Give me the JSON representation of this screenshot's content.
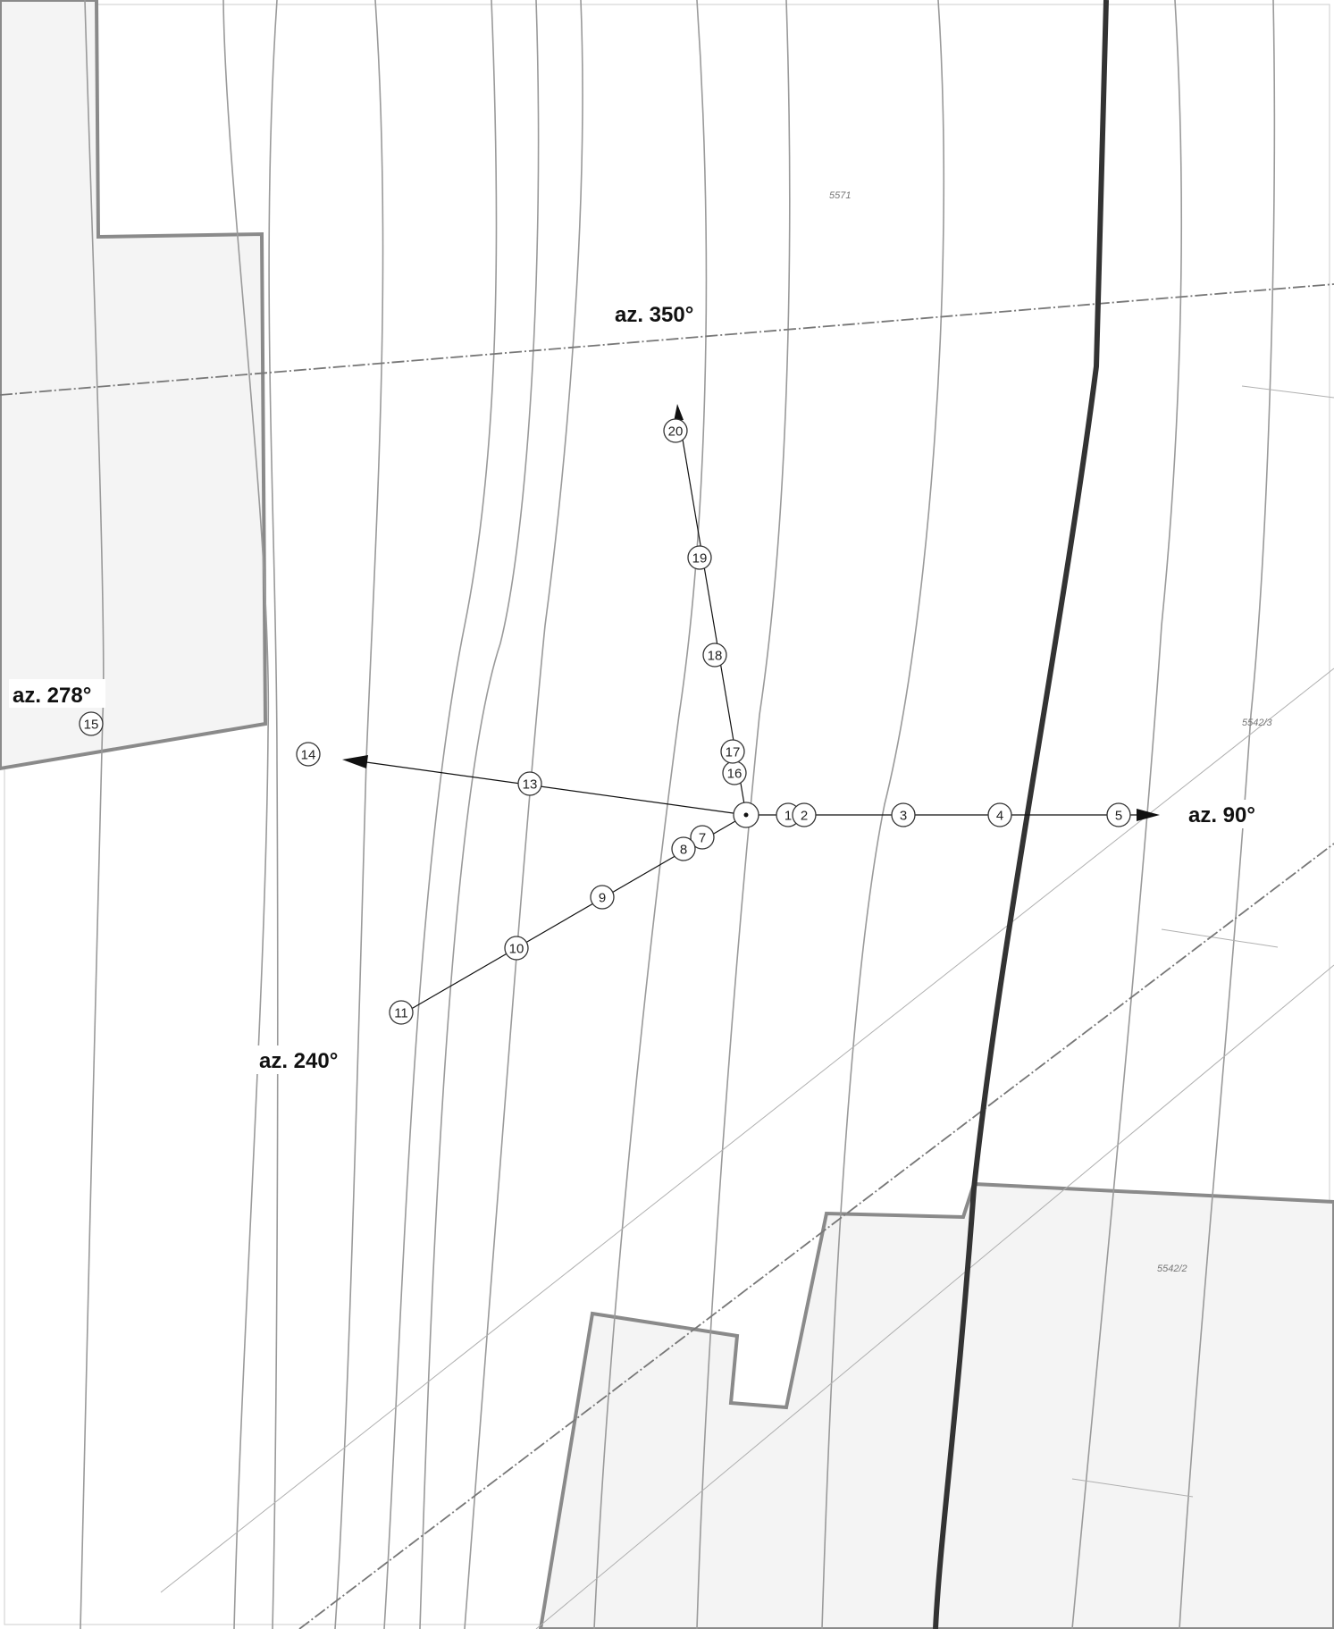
{
  "azimuth_labels": {
    "az350": "az. 350°",
    "az278": "az. 278°",
    "az90": "az. 90°",
    "az240": "az. 240°"
  },
  "parcel_labels": {
    "top": "5571",
    "right": "5542/3",
    "bottom_right": "5542/2"
  },
  "points": [
    {
      "id": "1",
      "label": "1"
    },
    {
      "id": "2",
      "label": "2"
    },
    {
      "id": "3",
      "label": "3"
    },
    {
      "id": "4",
      "label": "4"
    },
    {
      "id": "5",
      "label": "5"
    },
    {
      "id": "7",
      "label": "7"
    },
    {
      "id": "8",
      "label": "8"
    },
    {
      "id": "9",
      "label": "9"
    },
    {
      "id": "10",
      "label": "10"
    },
    {
      "id": "11",
      "label": "11"
    },
    {
      "id": "13",
      "label": "13"
    },
    {
      "id": "14",
      "label": "14"
    },
    {
      "id": "15",
      "label": "15"
    },
    {
      "id": "16",
      "label": "16"
    },
    {
      "id": "17",
      "label": "17"
    },
    {
      "id": "18",
      "label": "18"
    },
    {
      "id": "19",
      "label": "19"
    },
    {
      "id": "20",
      "label": "20"
    }
  ],
  "colors": {
    "parcel_fill": "#f4f4f4",
    "parcel_border": "#8a8a8a",
    "road": "#333333",
    "contour": "#9a9a9a"
  }
}
